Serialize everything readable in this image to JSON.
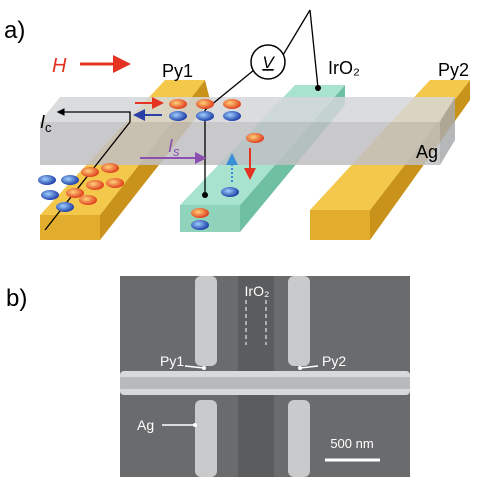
{
  "panel_a": {
    "label": "a)",
    "field": "H",
    "py1": "Py1",
    "iro2": "IrO₂",
    "py2": "Py2",
    "voltmeter": "V",
    "charge_current": {
      "symbol": "I",
      "subscript": "c"
    },
    "spin_current": {
      "symbol": "I",
      "subscript": "s"
    },
    "ag": "Ag"
  },
  "panel_b": {
    "label": "b)",
    "iro2": "IrO₂",
    "py1": "Py1",
    "py2": "Py2",
    "ag": "Ag",
    "scale_bar": "500 nm"
  }
}
